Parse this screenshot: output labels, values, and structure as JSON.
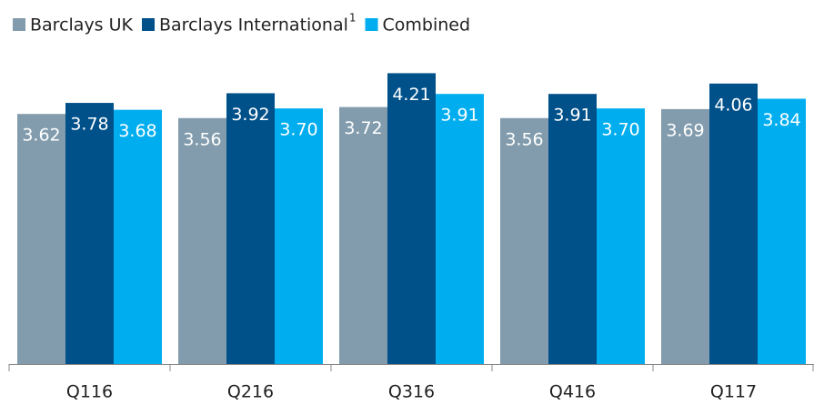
{
  "chart_data": {
    "type": "bar",
    "categories": [
      "Q116",
      "Q216",
      "Q316",
      "Q416",
      "Q117"
    ],
    "series": [
      {
        "name": "Barclays UK",
        "color": "#829cad",
        "values": [
          3.62,
          3.56,
          3.72,
          3.56,
          3.69
        ],
        "value_labels": [
          "3.62",
          "3.56",
          "3.72",
          "3.56",
          "3.69"
        ]
      },
      {
        "name": "Barclays International",
        "superscript": "1",
        "color": "#00508a",
        "values": [
          3.78,
          3.92,
          4.21,
          3.91,
          4.06
        ],
        "value_labels": [
          "3.78",
          "3.92",
          "4.21",
          "3.91",
          "4.06"
        ]
      },
      {
        "name": "Combined",
        "color": "#00aeef",
        "values": [
          3.68,
          3.7,
          3.91,
          3.7,
          3.84
        ],
        "value_labels": [
          "3.68",
          "3.70",
          "3.91",
          "3.70",
          "3.84"
        ]
      }
    ],
    "ylim": [
      0,
      4.4
    ],
    "legend": "top-left"
  }
}
